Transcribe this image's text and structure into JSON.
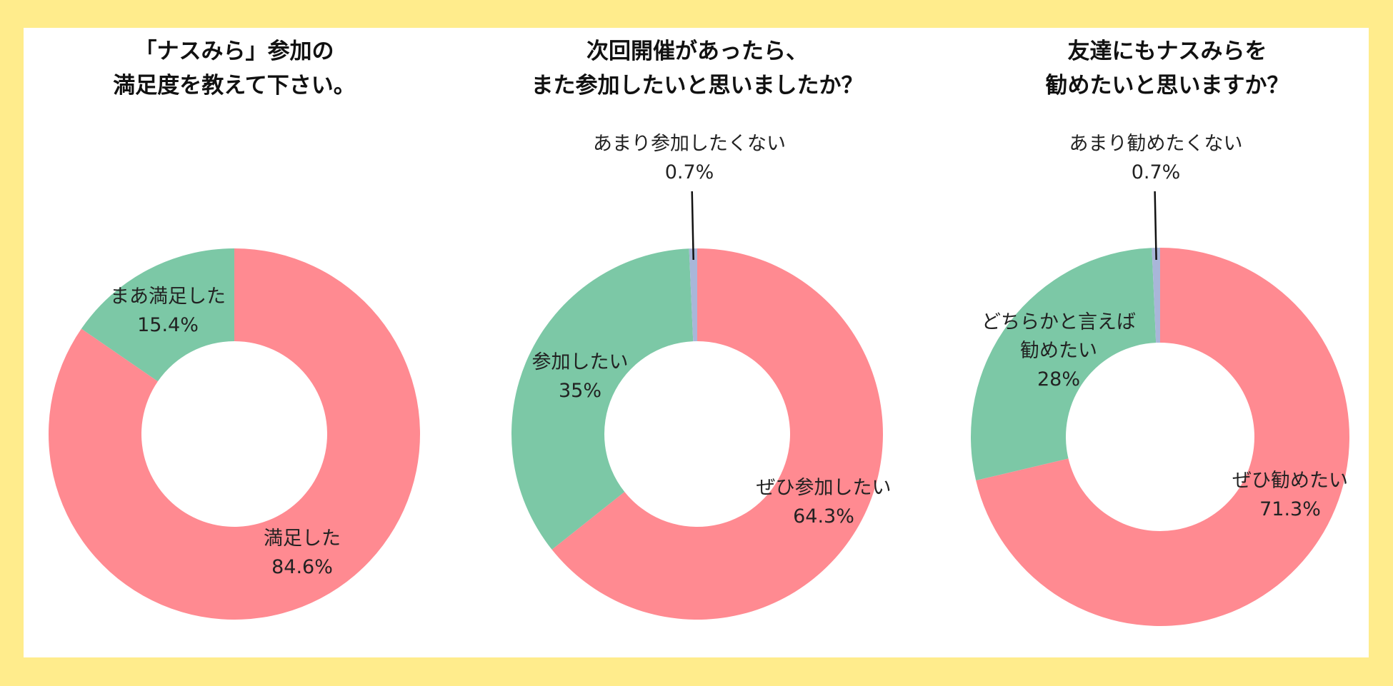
{
  "colors": {
    "background": "#FFEC8C",
    "panel": "#FFFFFF",
    "primary": "#FF8A91",
    "secondary": "#7CC8A6",
    "minor": "#A9B6D9",
    "leader": "#111111"
  },
  "chart_data": [
    {
      "type": "pie",
      "donut": true,
      "title": [
        "「ナスみら」参加の",
        "満足度を教えて下さい。"
      ],
      "slices": [
        {
          "label": [
            "満足した"
          ],
          "percent_label": "84.6%",
          "value": 84.6,
          "color": "#FF8A91"
        },
        {
          "label": [
            "まあ満足した"
          ],
          "percent_label": "15.4%",
          "value": 15.4,
          "color": "#7CC8A6"
        }
      ]
    },
    {
      "type": "pie",
      "donut": true,
      "title": [
        "次回開催があったら、",
        "また参加したいと思いましたか？"
      ],
      "slices": [
        {
          "label": [
            "ぜひ参加したい"
          ],
          "percent_label": "64.3%",
          "value": 64.3,
          "color": "#FF8A91"
        },
        {
          "label": [
            "参加したい"
          ],
          "percent_label": "35%",
          "value": 35.0,
          "color": "#7CC8A6"
        },
        {
          "label": [
            "あまり参加したくない"
          ],
          "percent_label": "0.7%",
          "value": 0.7,
          "color": "#A9B6D9"
        }
      ]
    },
    {
      "type": "pie",
      "donut": true,
      "title": [
        "友達にもナスみらを",
        "勧めたいと思いますか？"
      ],
      "slices": [
        {
          "label": [
            "ぜひ勧めたい"
          ],
          "percent_label": "71.3%",
          "value": 71.3,
          "color": "#FF8A91"
        },
        {
          "label": [
            "どちらかと言えば",
            "勧めたい"
          ],
          "percent_label": "28%",
          "value": 28.0,
          "color": "#7CC8A6"
        },
        {
          "label": [
            "あまり勧めたくない"
          ],
          "percent_label": "0.7%",
          "value": 0.7,
          "color": "#A9B6D9"
        }
      ]
    }
  ]
}
